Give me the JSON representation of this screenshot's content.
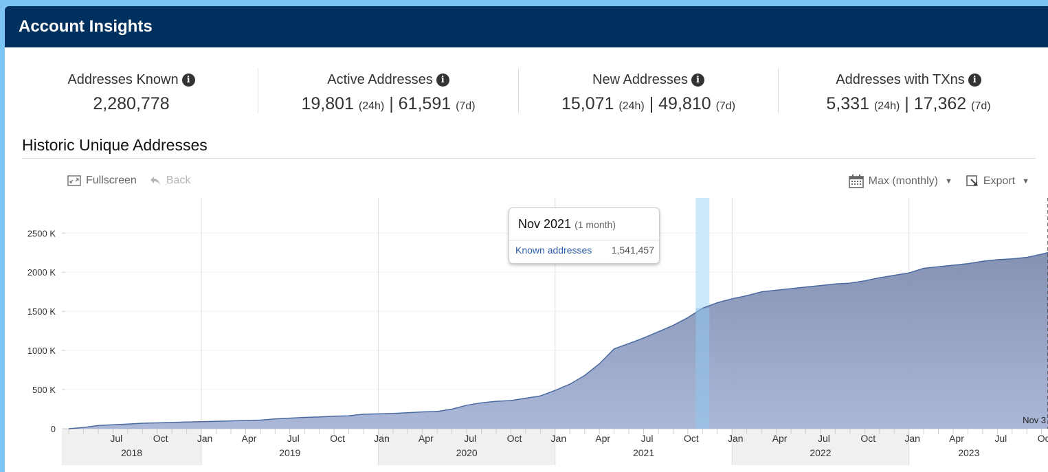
{
  "header": {
    "title": "Account Insights"
  },
  "stats": [
    {
      "label": "Addresses Known",
      "value": "2,280,778"
    },
    {
      "label": "Active Addresses",
      "v24": "19,801",
      "u24": "(24h)",
      "sep": "|",
      "v7": "61,591",
      "u7": "(7d)"
    },
    {
      "label": "New Addresses",
      "v24": "15,071",
      "u24": "(24h)",
      "sep": "|",
      "v7": "49,810",
      "u7": "(7d)"
    },
    {
      "label": "Addresses with TXns",
      "v24": "5,331",
      "u24": "(24h)",
      "sep": "|",
      "v7": "17,362",
      "u7": "(7d)"
    }
  ],
  "info_icon_glyph": "i",
  "section": {
    "title": "Historic Unique Addresses"
  },
  "toolbar": {
    "fullscreen": "Fullscreen",
    "back": "Back",
    "range": "Max (monthly)",
    "export": "Export"
  },
  "tooltip": {
    "month": "Nov 2021",
    "period": "(1 month)",
    "series": "Known addresses",
    "value": "1,541,457"
  },
  "colors": {
    "header": "#00305d",
    "area_top": "#7e8cb0",
    "area_bottom": "#a7b4d6",
    "line": "#4a6aa0",
    "highlight": "#bfe2f7"
  },
  "chart_data": {
    "type": "area",
    "title": "Historic Unique Addresses",
    "series": [
      {
        "name": "Known addresses",
        "x": [
          "2018-04",
          "2018-05",
          "2018-06",
          "2018-07",
          "2018-08",
          "2018-09",
          "2018-10",
          "2018-11",
          "2018-12",
          "2019-01",
          "2019-02",
          "2019-03",
          "2019-04",
          "2019-05",
          "2019-06",
          "2019-07",
          "2019-08",
          "2019-09",
          "2019-10",
          "2019-11",
          "2019-12",
          "2020-01",
          "2020-02",
          "2020-03",
          "2020-04",
          "2020-05",
          "2020-06",
          "2020-07",
          "2020-08",
          "2020-09",
          "2020-10",
          "2020-11",
          "2020-12",
          "2021-01",
          "2021-02",
          "2021-03",
          "2021-04",
          "2021-05",
          "2021-06",
          "2021-07",
          "2021-08",
          "2021-09",
          "2021-10",
          "2021-11",
          "2021-12",
          "2022-01",
          "2022-02",
          "2022-03",
          "2022-04",
          "2022-05",
          "2022-06",
          "2022-07",
          "2022-08",
          "2022-09",
          "2022-10",
          "2022-11",
          "2022-12",
          "2023-01",
          "2023-02",
          "2023-03",
          "2023-04",
          "2023-05",
          "2023-06",
          "2023-07",
          "2023-08",
          "2023-09",
          "2023-10",
          "2023-11"
        ],
        "values": [
          0,
          15,
          40,
          50,
          60,
          70,
          75,
          80,
          85,
          90,
          95,
          100,
          105,
          110,
          125,
          135,
          145,
          150,
          160,
          165,
          185,
          190,
          195,
          205,
          215,
          220,
          250,
          300,
          330,
          350,
          360,
          390,
          420,
          490,
          570,
          680,
          830,
          1020,
          1090,
          1160,
          1240,
          1320,
          1420,
          1541,
          1610,
          1660,
          1700,
          1750,
          1770,
          1790,
          1810,
          1830,
          1850,
          1860,
          1890,
          1930,
          1960,
          1990,
          2050,
          2070,
          2090,
          2110,
          2140,
          2160,
          2170,
          2190,
          2230,
          2281
        ]
      }
    ],
    "y_ticks": [
      "0",
      "500 K",
      "1000 K",
      "1500 K",
      "2000 K",
      "2500 K"
    ],
    "ylim": [
      0,
      2950
    ],
    "x_month_ticks": [
      "Jul",
      "Oct",
      "Jan",
      "Apr",
      "Jul",
      "Oct",
      "Jan",
      "Apr",
      "Jul",
      "Oct",
      "Jan",
      "Apr",
      "Jul",
      "Oct",
      "Jan",
      "Apr",
      "Jul",
      "Oct",
      "Jan",
      "Apr",
      "Jul",
      "Oct"
    ],
    "x_year_labels": [
      "2018",
      "2019",
      "2020",
      "2021",
      "2022",
      "2023"
    ],
    "highlight_month": "2021-11",
    "end_marker_label": "Nov 3",
    "grid": true
  }
}
